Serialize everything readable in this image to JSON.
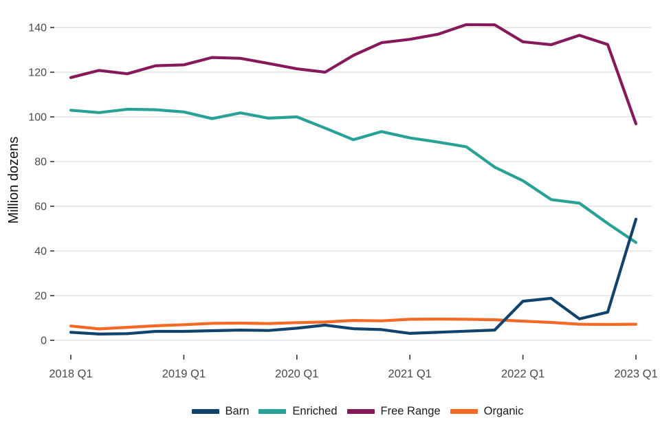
{
  "chart_data": {
    "type": "line",
    "title": "",
    "xlabel": "",
    "ylabel": "Million dozens",
    "grid": "horizontal",
    "legend_position": "bottom",
    "ylim": [
      0,
      140
    ],
    "ytick_step": 20,
    "ytick_labels": [
      "0",
      "20",
      "40",
      "60",
      "80",
      "100",
      "120",
      "140"
    ],
    "x": [
      "2018 Q1",
      "2018 Q2",
      "2018 Q3",
      "2018 Q4",
      "2019 Q1",
      "2019 Q2",
      "2019 Q3",
      "2019 Q4",
      "2020 Q1",
      "2020 Q2",
      "2020 Q3",
      "2020 Q4",
      "2021 Q1",
      "2021 Q2",
      "2021 Q3",
      "2021 Q4",
      "2022 Q1",
      "2022 Q2",
      "2022 Q3",
      "2022 Q4",
      "2023 Q1"
    ],
    "x_tick_labels": [
      "2018 Q1",
      "2019 Q1",
      "2020 Q1",
      "2021 Q1",
      "2022 Q1",
      "2023 Q1"
    ],
    "x_tick_indices": [
      0,
      4,
      8,
      12,
      16,
      20
    ],
    "series": [
      {
        "name": "Barn",
        "color": "#12436D",
        "values": [
          3.6,
          2.8,
          3.0,
          4.0,
          4.0,
          4.3,
          4.6,
          4.4,
          5.4,
          6.8,
          5.2,
          4.8,
          3.1,
          3.6,
          4.1,
          4.6,
          17.5,
          18.8,
          9.6,
          12.6,
          54.2
        ]
      },
      {
        "name": "Enriched",
        "color": "#28A197",
        "values": [
          103.0,
          101.9,
          103.4,
          103.2,
          102.2,
          99.2,
          101.8,
          99.4,
          100.0,
          95.0,
          89.8,
          93.4,
          90.6,
          88.7,
          86.6,
          77.5,
          71.4,
          63.0,
          61.4,
          52.3,
          43.8
        ]
      },
      {
        "name": "Free Range",
        "color": "#85195A",
        "values": [
          117.6,
          120.8,
          119.3,
          122.9,
          123.3,
          126.6,
          126.2,
          123.9,
          121.5,
          120.0,
          127.5,
          133.2,
          134.7,
          137.0,
          141.3,
          141.2,
          133.6,
          132.3,
          136.5,
          132.4,
          96.9
        ]
      },
      {
        "name": "Organic",
        "color": "#F46A25",
        "values": [
          6.4,
          5.1,
          5.8,
          6.5,
          7.0,
          7.6,
          7.7,
          7.5,
          7.9,
          8.2,
          8.9,
          8.7,
          9.4,
          9.5,
          9.4,
          9.2,
          8.6,
          8.0,
          7.2,
          7.1,
          7.2
        ]
      }
    ]
  },
  "colors": {
    "background": "#FFFFFF",
    "gridline": "#E4E4E4",
    "tick_mark": "#333333",
    "axis_text": "#4A4A4A",
    "axis_title_text": "#111111",
    "legend_text": "#1A1A1A"
  }
}
